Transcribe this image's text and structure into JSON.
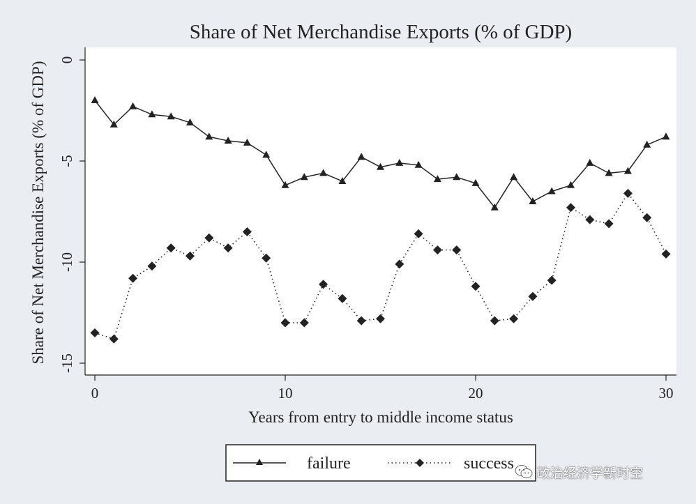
{
  "chart_data": {
    "type": "line",
    "title": "Share of Net Merchandise Exports (% of GDP)",
    "xlabel": "Years from entry to middle income status",
    "ylabel": "Share of Net Merchandise Exports (% of GDP)",
    "xlim": [
      0,
      30
    ],
    "ylim": [
      -15,
      0
    ],
    "xticks": [
      0,
      10,
      20,
      30
    ],
    "yticks": [
      0,
      -5,
      -10,
      -15
    ],
    "grid": false,
    "legend_position": "bottom",
    "x": [
      0,
      1,
      2,
      3,
      4,
      5,
      6,
      7,
      8,
      9,
      10,
      11,
      12,
      13,
      14,
      15,
      16,
      17,
      18,
      19,
      20,
      21,
      22,
      23,
      24,
      25,
      26,
      27,
      28,
      29,
      30
    ],
    "series": [
      {
        "name": "failure",
        "style": "solid",
        "marker": "triangle",
        "values": [
          -2.0,
          -3.2,
          -2.3,
          -2.7,
          -2.8,
          -3.1,
          -3.8,
          -4.0,
          -4.1,
          -4.7,
          -6.2,
          -5.8,
          -5.6,
          -6.0,
          -4.8,
          -5.3,
          -5.1,
          -5.2,
          -5.9,
          -5.8,
          -6.1,
          -7.3,
          -5.8,
          -7.0,
          -6.5,
          -6.2,
          -5.1,
          -5.6,
          -5.5,
          -4.2,
          -3.8
        ]
      },
      {
        "name": "success",
        "style": "dotted",
        "marker": "diamond",
        "values": [
          -13.5,
          -13.8,
          -10.8,
          -10.2,
          -9.3,
          -9.7,
          -8.8,
          -9.3,
          -8.5,
          -9.8,
          -13.0,
          -13.0,
          -11.1,
          -11.8,
          -12.9,
          -12.8,
          -10.1,
          -8.6,
          -9.4,
          -9.4,
          -11.2,
          -12.9,
          -12.8,
          -11.7,
          -10.9,
          -7.3,
          -7.9,
          -8.1,
          -6.6,
          -7.8,
          -9.6
        ]
      }
    ],
    "colors": {
      "line": "#222222",
      "plot_bg": "#ffffff",
      "page_bg": "#eaeef2"
    }
  },
  "legend": {
    "failure_label": "failure",
    "success_label": "success"
  },
  "watermark": {
    "text": "政治经济学新时空",
    "icon": "wechat-icon"
  }
}
